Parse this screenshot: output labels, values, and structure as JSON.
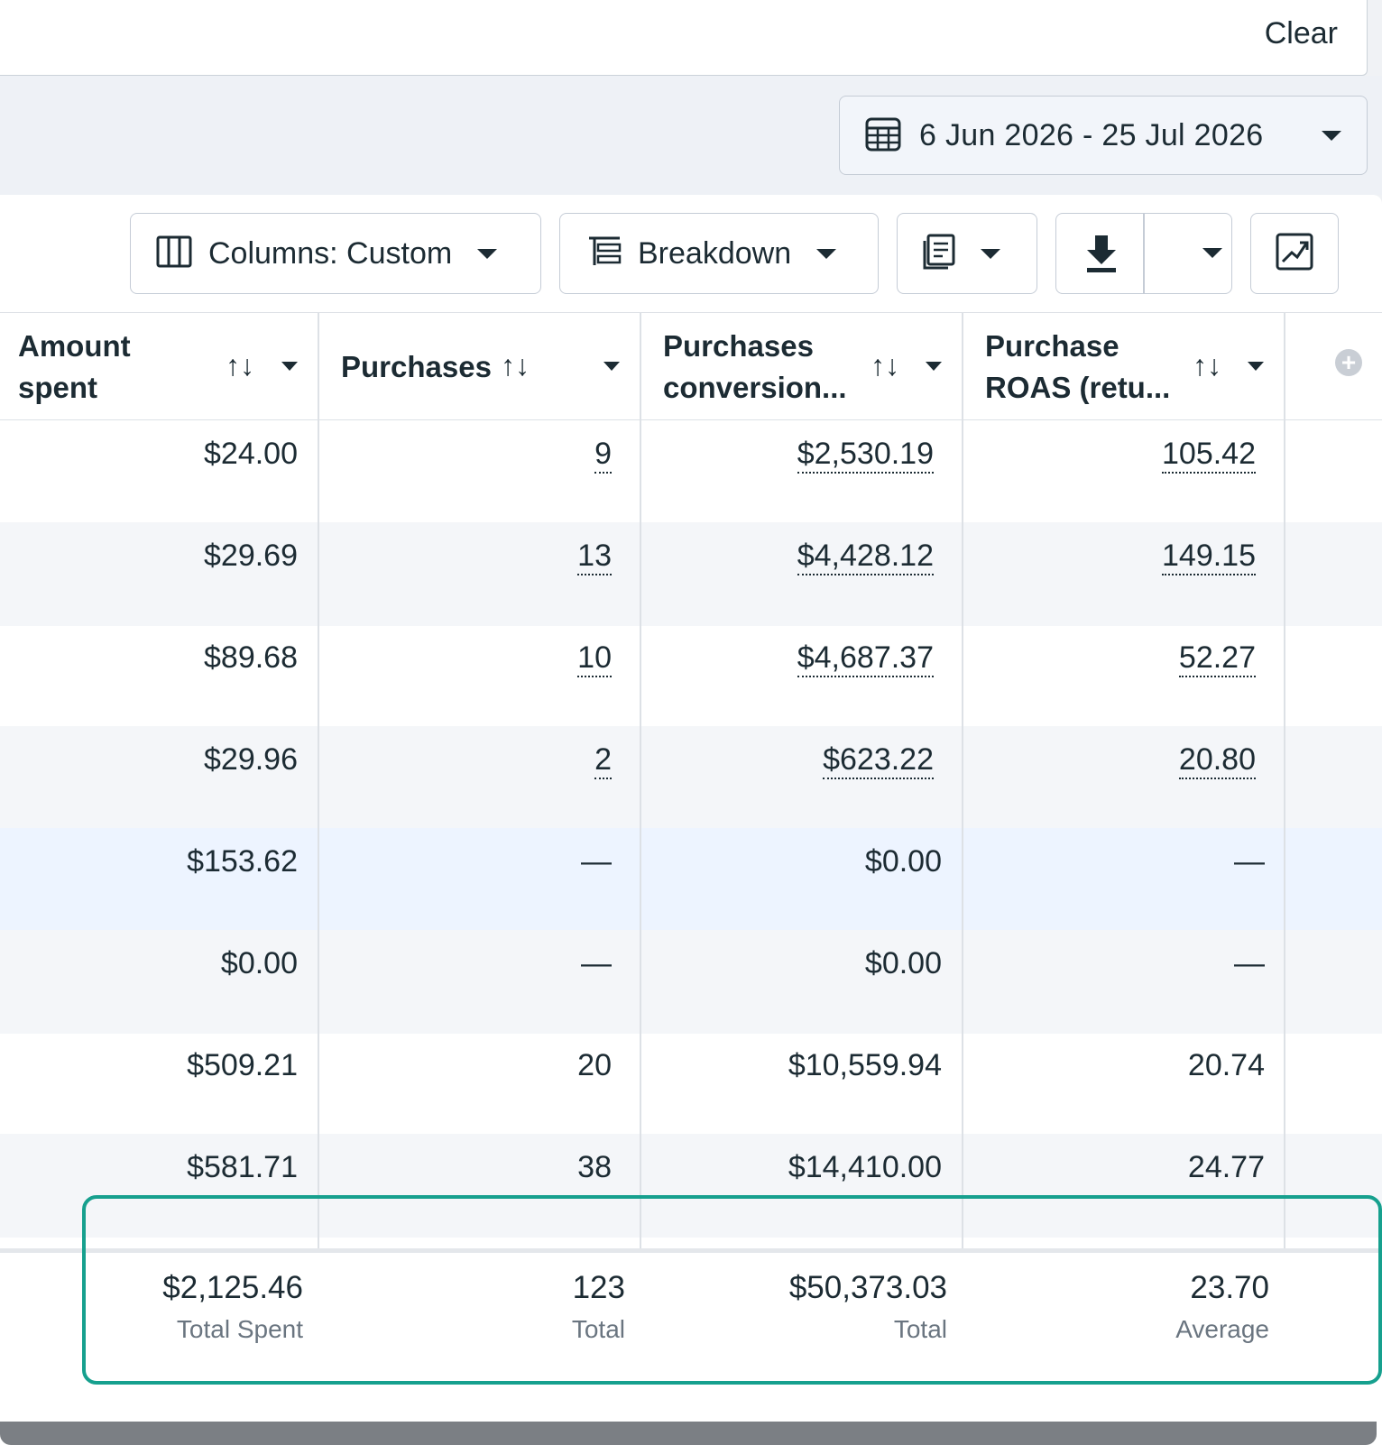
{
  "top": {
    "clear_label": "Clear"
  },
  "date_range": {
    "label": "6 Jun 2026 - 25 Jul 2026"
  },
  "toolbar": {
    "columns_label": "Columns: Custom",
    "breakdown_label": "Breakdown"
  },
  "icons": {
    "calendar": "calendar-icon",
    "columns": "columns-icon",
    "breakdown": "breakdown-icon",
    "reports": "reports-icon",
    "download": "download-icon",
    "chart": "chart-icon",
    "add_column": "add-column-icon"
  },
  "table": {
    "headers": [
      {
        "line1": "Amount",
        "line2": "spent"
      },
      {
        "line1": "Purchases",
        "line2": ""
      },
      {
        "line1": "Purchases",
        "line2": "conversion..."
      },
      {
        "line1": "Purchase",
        "line2": "ROAS (retu..."
      }
    ],
    "sort_glyph": "↑↓",
    "rows": [
      {
        "spent": "$24.00",
        "purchases": "9",
        "conv": "$2,530.19",
        "roas": "105.42"
      },
      {
        "spent": "$29.69",
        "purchases": "13",
        "conv": "$4,428.12",
        "roas": "149.15"
      },
      {
        "spent": "$89.68",
        "purchases": "10",
        "conv": "$4,687.37",
        "roas": "52.27"
      },
      {
        "spent": "$29.96",
        "purchases": "2",
        "conv": "$623.22",
        "roas": "20.80"
      },
      {
        "spent": "$153.62",
        "purchases": "—",
        "conv": "$0.00",
        "roas": "—"
      },
      {
        "spent": "$0.00",
        "purchases": "—",
        "conv": "$0.00",
        "roas": "—"
      },
      {
        "spent": "$509.21",
        "purchases": "20",
        "conv": "$10,559.94",
        "roas": "20.74"
      },
      {
        "spent": "$581.71",
        "purchases": "38",
        "conv": "$14,410.00",
        "roas": "24.77"
      }
    ],
    "totals": {
      "spent": {
        "value": "$2,125.46",
        "label": "Total Spent"
      },
      "purchases": {
        "value": "123",
        "label": "Total"
      },
      "conv": {
        "value": "$50,373.03",
        "label": "Total"
      },
      "roas": {
        "value": "23.70",
        "label": "Average"
      }
    }
  },
  "colors": {
    "highlight_box": "#16a08e",
    "text": "#1c2b33",
    "muted": "#6a7580",
    "row_highlight": "#edf4ff"
  }
}
